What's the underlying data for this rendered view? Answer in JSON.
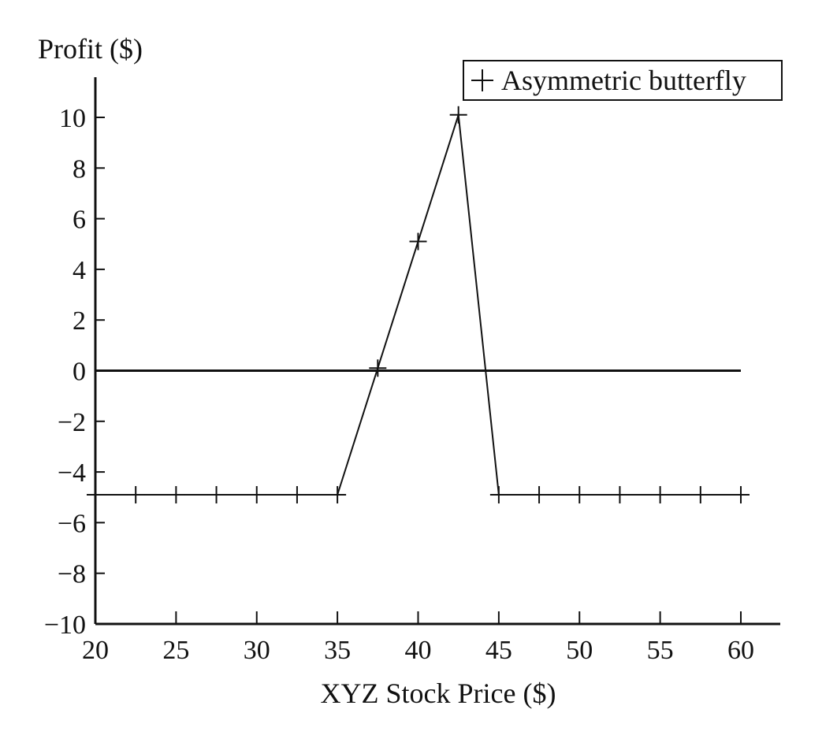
{
  "chart_data": {
    "type": "line",
    "title": "",
    "xlabel": "XYZ Stock Price ($)",
    "ylabel": "Profit ($)",
    "xlim": [
      20,
      60
    ],
    "ylim": [
      -10,
      10
    ],
    "x_ticks": [
      20,
      25,
      30,
      35,
      40,
      45,
      50,
      55,
      60
    ],
    "x_tick_labels": [
      "20",
      "25",
      "30",
      "35",
      "40",
      "45",
      "50",
      "55",
      "60"
    ],
    "y_ticks": [
      10,
      8,
      6,
      4,
      2,
      0,
      -2,
      -4,
      -6,
      -8,
      -10
    ],
    "y_tick_labels": [
      "10",
      "8",
      "6",
      "4",
      "2",
      "0",
      "−2",
      "−4",
      "−6",
      "−8",
      "−10"
    ],
    "grid": false,
    "legend_position": "top-right",
    "series": [
      {
        "name": "Asymmetric butterfly",
        "marker": "plus",
        "x": [
          20,
          22.5,
          25,
          27.5,
          30,
          32.5,
          35,
          37.5,
          40,
          42.5,
          45,
          47.5,
          50,
          52.5,
          55,
          57.5,
          60
        ],
        "y": [
          -4.9,
          -4.9,
          -4.9,
          -4.9,
          -4.9,
          -4.9,
          -4.9,
          0.1,
          5.1,
          10.1,
          -4.9,
          -4.9,
          -4.9,
          -4.9,
          -4.9,
          -4.9,
          -4.9
        ]
      }
    ],
    "reference_line": {
      "y": 0,
      "x_range": [
        20,
        60
      ]
    }
  }
}
